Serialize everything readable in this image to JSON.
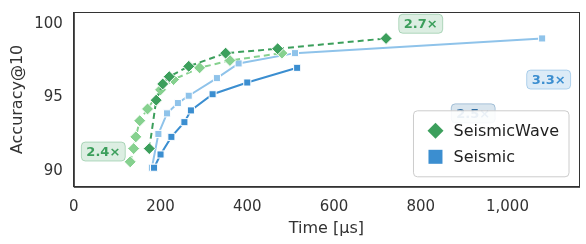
{
  "chart_data": {
    "type": "line",
    "x_label": "Time [μs]",
    "y_label": "Accuracy@10",
    "xlim": [
      0,
      1165
    ],
    "xticks": [
      0,
      200,
      400,
      600,
      800,
      1000
    ],
    "ylim": [
      88.9,
      100.8
    ],
    "yticks": [
      90,
      95,
      100
    ],
    "grid": false,
    "legend": "lower right",
    "series": [
      {
        "name": "SeismicWave",
        "color": "#3c9f5c",
        "marker": "diamond",
        "line_style": "dashed",
        "x": [
          174,
          190,
          205,
          220,
          265,
          350,
          470,
          720
        ],
        "values": [
          91.5,
          94.8,
          95.9,
          96.4,
          97.1,
          98.0,
          98.3,
          99.0
        ]
      },
      {
        "name": "Seismic",
        "color": "#3b8ed0",
        "marker": "square",
        "line_style": "solid",
        "x": [
          185,
          200,
          225,
          255,
          270,
          320,
          400,
          515
        ],
        "values": [
          90.2,
          91.1,
          92.3,
          93.3,
          94.1,
          95.2,
          96.0,
          97.0
        ]
      },
      {
        "name": "SeismicWave",
        "color": "#86d18f",
        "marker": "diamond",
        "line_style": "dashed",
        "x": [
          130,
          138,
          143,
          152,
          170,
          200,
          230,
          290,
          360,
          480
        ],
        "values": [
          90.6,
          91.5,
          92.3,
          93.4,
          94.2,
          95.5,
          96.2,
          97.0,
          97.5,
          98.0
        ]
      },
      {
        "name": "Seismic",
        "color": "#8fc3ea",
        "marker": "square",
        "line_style": "solid",
        "x": [
          180,
          195,
          215,
          240,
          265,
          330,
          380,
          510,
          1080
        ],
        "values": [
          90.2,
          92.5,
          93.9,
          94.6,
          95.1,
          96.3,
          97.3,
          98.0,
          99.0
        ]
      }
    ],
    "annotations": [
      {
        "text": "2.7×",
        "x": 800,
        "y": 100.0,
        "color": "#3c9f5c"
      },
      {
        "text": "2.4×",
        "x": 68,
        "y": 91.3,
        "color": "#3c9f5c"
      },
      {
        "text": "3.3×",
        "x": 1095,
        "y": 96.2,
        "color": "#3b8ed0"
      },
      {
        "text": "2.5×",
        "x": 921,
        "y": 93.9,
        "color": "#2f6da3"
      }
    ]
  }
}
